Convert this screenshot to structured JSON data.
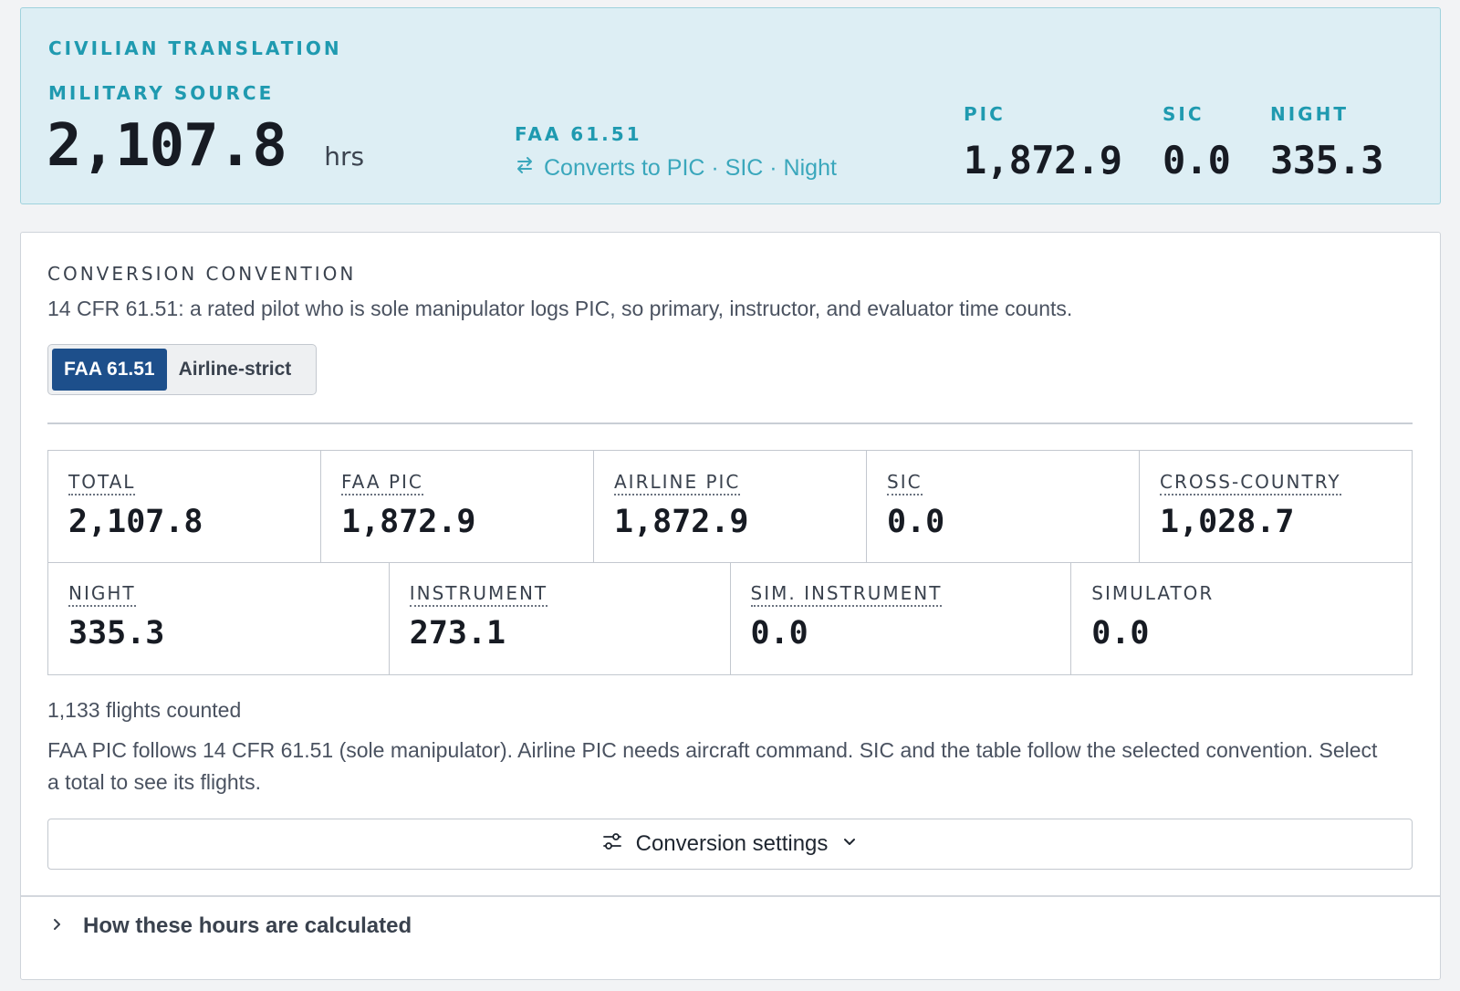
{
  "banner": {
    "title": "CIVILIAN TRANSLATION",
    "source_label": "MILITARY SOURCE",
    "source_value": "2,107.8",
    "source_unit": "hrs",
    "convention_label": "FAA 61.51",
    "converts_text": "Converts to PIC · SIC · Night",
    "stats": [
      {
        "label": "PIC",
        "value": "1,872.9"
      },
      {
        "label": "SIC",
        "value": "0.0"
      },
      {
        "label": "NIGHT",
        "value": "335.3"
      }
    ]
  },
  "convention": {
    "title": "CONVERSION CONVENTION",
    "description": "14 CFR 61.51: a rated pilot who is sole manipulator logs PIC, so primary, instructor, and evaluator time counts.",
    "options": [
      {
        "label": "FAA 61.51",
        "selected": true
      },
      {
        "label": "Airline-strict",
        "selected": false
      }
    ]
  },
  "totals": {
    "row1": [
      {
        "label": "TOTAL",
        "value": "2,107.8"
      },
      {
        "label": "FAA PIC",
        "value": "1,872.9"
      },
      {
        "label": "AIRLINE PIC",
        "value": "1,872.9"
      },
      {
        "label": "SIC",
        "value": "0.0"
      },
      {
        "label": "CROSS-COUNTRY",
        "value": "1,028.7"
      }
    ],
    "row2": [
      {
        "label": "NIGHT",
        "value": "335.3"
      },
      {
        "label": "INSTRUMENT",
        "value": "273.1"
      },
      {
        "label": "SIM. INSTRUMENT",
        "value": "0.0"
      },
      {
        "label": "SIMULATOR",
        "value": "0.0"
      }
    ]
  },
  "flights_counted": "1,133 flights counted",
  "note": "FAA PIC follows 14 CFR 61.51 (sole manipulator). Airline PIC needs aircraft command. SIC and the table follow the selected convention. Select a total to see its flights.",
  "settings_button": {
    "label": "Conversion settings",
    "icon": "sliders-icon",
    "chevron": "chevron-down-icon"
  },
  "disclosure": {
    "label": "How these hours are calculated",
    "icon": "chevron-right-icon"
  },
  "colors": {
    "banner_bg": "#ddeef4",
    "accent": "#1f9ab0",
    "selected_option": "#1d4f8b"
  }
}
